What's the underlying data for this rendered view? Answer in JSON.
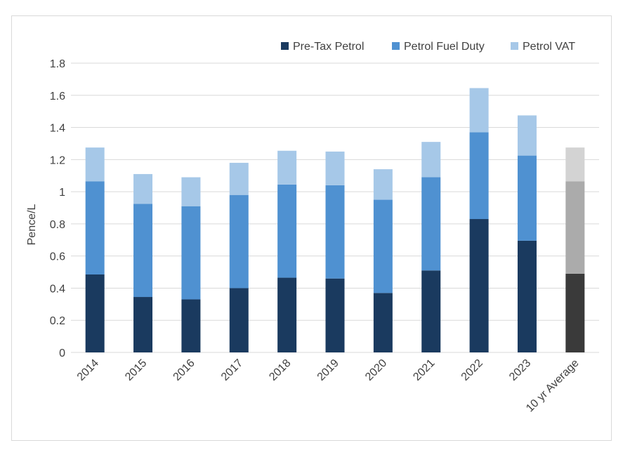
{
  "chart_data": {
    "type": "bar",
    "stacked": true,
    "title": "",
    "xlabel": "",
    "ylabel": "Pence/L",
    "ylim": [
      0,
      1.8
    ],
    "yticks": [
      "0",
      "0.2",
      "0.4",
      "0.6",
      "0.8",
      "1",
      "1.2",
      "1.4",
      "1.6",
      "1.8"
    ],
    "grid": true,
    "legend_position": "top-right",
    "categories": [
      "2014",
      "2015",
      "2016",
      "2017",
      "2018",
      "2019",
      "2020",
      "2021",
      "2022",
      "2023",
      "10 yr Average"
    ],
    "series": [
      {
        "name": "Pre-Tax Petrol",
        "color": "#1a3a5f",
        "values": [
          0.485,
          0.345,
          0.33,
          0.4,
          0.465,
          0.46,
          0.37,
          0.51,
          0.83,
          0.695,
          0.49
        ]
      },
      {
        "name": "Petrol Fuel Duty",
        "color": "#4f91d1",
        "values": [
          0.58,
          0.58,
          0.58,
          0.58,
          0.58,
          0.58,
          0.58,
          0.58,
          0.54,
          0.53,
          0.575
        ]
      },
      {
        "name": "Petrol VAT",
        "color": "#a6c8e8",
        "values": [
          0.21,
          0.185,
          0.18,
          0.2,
          0.21,
          0.21,
          0.19,
          0.22,
          0.275,
          0.25,
          0.21
        ]
      }
    ],
    "highlight": {
      "category": "10 yr Average",
      "colors": [
        "#3a3a3a",
        "#ababab",
        "#d3d3d3"
      ]
    }
  }
}
